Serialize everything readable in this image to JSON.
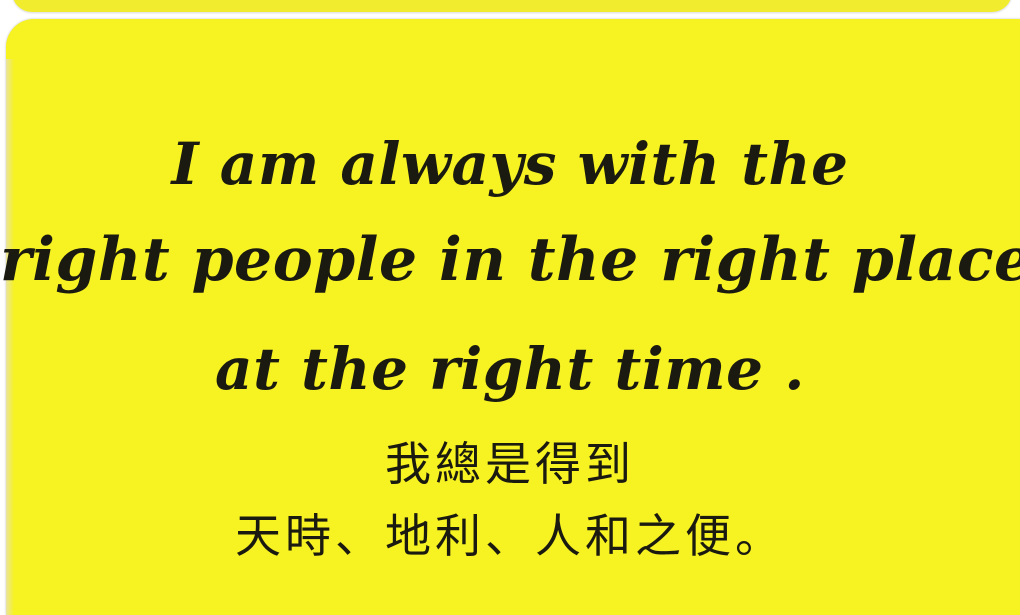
{
  "card": {
    "background_color": "#f7f222",
    "text_color": "#1a1a10"
  },
  "affirmation": {
    "english_lines": [
      "I am always with the",
      "right people in the right place",
      "at the right time ."
    ],
    "chinese_lines": [
      "我總是得到",
      "天時、地利、人和之便。"
    ]
  }
}
